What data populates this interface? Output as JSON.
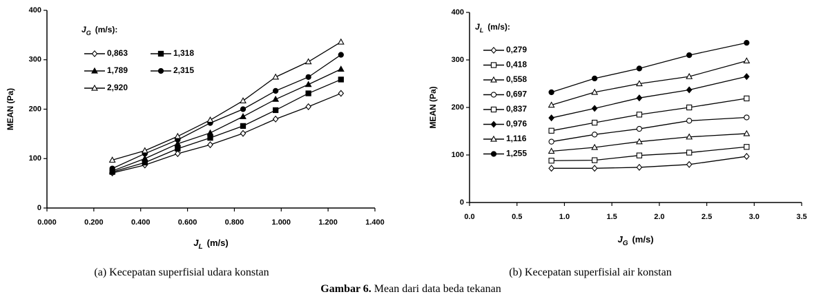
{
  "chart_data": [
    {
      "type": "line",
      "caption": "(a) Kecepatan superfisial udara konstan",
      "ylabel": "MEAN (Pa)",
      "xlabel": {
        "symbol": "J",
        "sub": "L",
        "unit": "(m/s)"
      },
      "legend_title": {
        "symbol": "J",
        "sub": "G",
        "unit": "(m/s):"
      },
      "x": [
        0.279,
        0.418,
        0.558,
        0.697,
        0.837,
        0.976,
        1.116,
        1.255
      ],
      "xlim": [
        0,
        1.4
      ],
      "xticks": [
        {
          "value": 0,
          "label": "0.000"
        },
        {
          "value": 0.2,
          "label": "0.200"
        },
        {
          "value": 0.4,
          "label": "0.400"
        },
        {
          "value": 0.6,
          "label": "0.600"
        },
        {
          "value": 0.8,
          "label": "0.800"
        },
        {
          "value": 1.0,
          "label": "1.000"
        },
        {
          "value": 1.2,
          "label": "1.200"
        },
        {
          "value": 1.4,
          "label": "1.400"
        }
      ],
      "ylim": [
        0,
        400
      ],
      "yticks": [
        0,
        100,
        200,
        300,
        400
      ],
      "series": [
        {
          "name": "0,863",
          "color": "#000000",
          "marker": "diamond",
          "filled": false,
          "values": [
            71,
            87,
            110,
            128,
            151,
            180,
            205,
            232
          ]
        },
        {
          "name": "1,318",
          "color": "#000000",
          "marker": "square",
          "filled": true,
          "values": [
            73,
            92,
            120,
            142,
            166,
            198,
            232,
            260
          ]
        },
        {
          "name": "1,789",
          "color": "#000000",
          "marker": "triangle",
          "filled": true,
          "values": [
            75,
            100,
            130,
            152,
            185,
            220,
            250,
            281
          ]
        },
        {
          "name": "2,315",
          "color": "#000000",
          "marker": "circle",
          "filled": true,
          "values": [
            80,
            110,
            138,
            172,
            200,
            237,
            265,
            310
          ]
        },
        {
          "name": "2,920",
          "color": "#000000",
          "marker": "triangle",
          "filled": false,
          "values": [
            97,
            116,
            145,
            178,
            217,
            265,
            296,
            336
          ]
        }
      ]
    },
    {
      "type": "line",
      "caption": "(b) Kecepatan superfisial air konstan",
      "ylabel": "MEAN (Pa)",
      "xlabel": {
        "symbol": "J",
        "sub": "G",
        "unit": "(m/s)"
      },
      "legend_title": {
        "symbol": "J",
        "sub": "L",
        "unit": "(m/s):"
      },
      "x": [
        0.863,
        1.318,
        1.789,
        2.315,
        2.92
      ],
      "xlim": [
        0,
        3.5
      ],
      "xticks": [
        {
          "value": 0,
          "label": "0.0"
        },
        {
          "value": 0.5,
          "label": "0.5"
        },
        {
          "value": 1,
          "label": "1.0"
        },
        {
          "value": 1.5,
          "label": "1.5"
        },
        {
          "value": 2,
          "label": "2.0"
        },
        {
          "value": 2.5,
          "label": "2.5"
        },
        {
          "value": 3,
          "label": "3.0"
        },
        {
          "value": 3.5,
          "label": "3.5"
        }
      ],
      "ylim": [
        0,
        400
      ],
      "yticks": [
        0,
        100,
        200,
        300,
        400
      ],
      "series": [
        {
          "name": "0,279",
          "color": "#000000",
          "marker": "diamond",
          "filled": false,
          "values": [
            72,
            72,
            74,
            80,
            97
          ]
        },
        {
          "name": "0,418",
          "color": "#000000",
          "marker": "square",
          "filled": false,
          "values": [
            88,
            89,
            99,
            105,
            117
          ]
        },
        {
          "name": "0,558",
          "color": "#000000",
          "marker": "triangle",
          "filled": false,
          "values": [
            108,
            116,
            128,
            138,
            145
          ]
        },
        {
          "name": "0,697",
          "color": "#000000",
          "marker": "circle",
          "filled": false,
          "values": [
            128,
            143,
            155,
            172,
            179
          ]
        },
        {
          "name": "0,837",
          "color": "#000000",
          "marker": "square",
          "filled": false,
          "values": [
            151,
            168,
            185,
            200,
            219
          ]
        },
        {
          "name": "0,976",
          "color": "#000000",
          "marker": "diamond",
          "filled": true,
          "values": [
            178,
            198,
            220,
            237,
            265
          ]
        },
        {
          "name": "1,116",
          "color": "#000000",
          "marker": "triangle",
          "filled": false,
          "values": [
            205,
            232,
            250,
            265,
            298
          ]
        },
        {
          "name": "1,255",
          "color": "#000000",
          "marker": "circle",
          "filled": true,
          "values": [
            232,
            261,
            282,
            310,
            336
          ]
        }
      ]
    }
  ],
  "caption": {
    "label": "Gambar 6.",
    "text": "Mean dari data beda tekanan"
  }
}
